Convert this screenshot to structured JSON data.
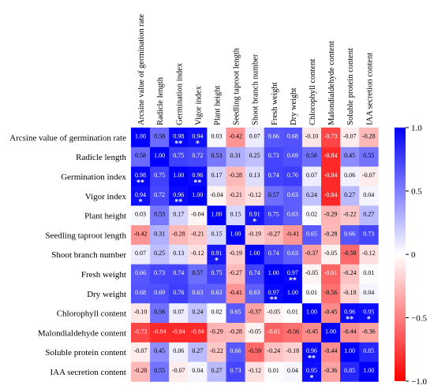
{
  "chart_data": {
    "type": "heatmap",
    "title": "",
    "variables": [
      "Arcsine value of germination rate",
      "Radicle length",
      "Germination index",
      "Vigor index",
      "Plant height",
      "Seedling taproot length",
      "Shoot branch number",
      "Fresh weight",
      "Dry weight",
      "Chlorophyll content",
      "Malondialdehyde content",
      "Soluble protein content",
      "IAA secretion content"
    ],
    "value_labels": [
      [
        "1.00",
        "0.58",
        "0.98",
        "0.94",
        "0.03",
        "-0.42",
        "0.07",
        "0.66",
        "0.68",
        "-0.10",
        "-0.73",
        "-0.07",
        "-0.28"
      ],
      [
        "0.58",
        "1.00",
        "0.75",
        "0.72",
        "0.53",
        "0.31",
        "0.25",
        "0.73",
        "0.69",
        "0.56",
        "-0.84",
        "0.45",
        "0.55"
      ],
      [
        "0.98",
        "0.75",
        "1.00",
        "0.96",
        "0.17",
        "-0.28",
        "0.13",
        "0.74",
        "0.76",
        "0.07",
        "-0.84",
        "0.06",
        "-0.07"
      ],
      [
        "0.94",
        "0.72",
        "0.96",
        "1.00",
        "-0.04",
        "-0.21",
        "-0.12",
        "0.57",
        "0.63",
        "0.24",
        "-0.84",
        "0.27",
        "0.04"
      ],
      [
        "0.03",
        "0.53",
        "0.17",
        "-0.04",
        "1.00",
        "0.15",
        "0.91",
        "0.75",
        "0.63",
        "0.02",
        "-0.29",
        "-0.22",
        "0.27"
      ],
      [
        "-0.42",
        "0.31",
        "-0.28",
        "-0.21",
        "0.15",
        "1.00",
        "-0.19",
        "-0.27",
        "-0.41",
        "0.65",
        "-0.28",
        "0.66",
        "0.73"
      ],
      [
        "0.07",
        "0.25",
        "0.13",
        "-0.12",
        "0.91",
        "-0.19",
        "1.00",
        "0.74",
        "0.63",
        "-0.37",
        "-0.05",
        "-0.59",
        "-0.12"
      ],
      [
        "0.66",
        "0.73",
        "0.74",
        "0.57",
        "0.75",
        "-0.27",
        "0.74",
        "1.00",
        "0.97",
        "-0.05",
        "-0.61",
        "-0.24",
        "0.01"
      ],
      [
        "0.68",
        "0.69",
        "0.76",
        "0.63",
        "0.63",
        "-0.41",
        "0.63",
        "0.97",
        "1.00",
        "0.01",
        "-0.56",
        "-0.18",
        "0.04"
      ],
      [
        "-0.10",
        "0.56",
        "0.07",
        "0.24",
        "0.02",
        "0.65",
        "-0.37",
        "-0.05",
        "0.01",
        "1.00",
        "-0.45",
        "0.96",
        "0.95"
      ],
      [
        "-0.73",
        "-0.84",
        "-0.84",
        "-0.84",
        "-0.29",
        "-0.28",
        "-0.05",
        "-0.61",
        "-0.56",
        "-0.45",
        "1.00",
        "-0.44",
        "-0.36"
      ],
      [
        "-0.07",
        "0.45",
        "0.06",
        "0.27",
        "-0.22",
        "0.66",
        "-0.59",
        "-0.24",
        "-0.18",
        "0.96",
        "-0.44",
        "1.00",
        "0.85"
      ],
      [
        "-0.28",
        "0.55",
        "-0.07",
        "0.04",
        "0.27",
        "0.73",
        "-0.12",
        "0.01",
        "0.04",
        "0.95",
        "-0.36",
        "0.85",
        "1.00"
      ]
    ],
    "significance": [
      [
        "",
        "",
        "**",
        "*",
        "",
        "",
        "",
        "",
        "",
        "",
        "",
        "",
        ""
      ],
      [
        "",
        "",
        "",
        "",
        "",
        "",
        "",
        "",
        "",
        "",
        "",
        "",
        ""
      ],
      [
        "**",
        "",
        "",
        "**",
        "",
        "",
        "",
        "",
        "",
        "",
        "",
        "",
        ""
      ],
      [
        "*",
        "",
        "**",
        "",
        "",
        "",
        "",
        "",
        "",
        "",
        "",
        "",
        ""
      ],
      [
        "",
        "",
        "",
        "",
        "",
        "",
        "*",
        "",
        "",
        "",
        "",
        "",
        ""
      ],
      [
        "",
        "",
        "",
        "",
        "",
        "",
        "",
        "",
        "",
        "",
        "",
        "",
        ""
      ],
      [
        "",
        "",
        "",
        "",
        "*",
        "",
        "",
        "",
        "",
        "",
        "",
        "",
        ""
      ],
      [
        "",
        "",
        "",
        "",
        "",
        "",
        "",
        "",
        "**",
        "",
        "",
        "",
        ""
      ],
      [
        "",
        "",
        "",
        "",
        "",
        "",
        "",
        "**",
        "",
        "",
        "",
        "",
        ""
      ],
      [
        "",
        "",
        "",
        "",
        "",
        "",
        "",
        "",
        "",
        "",
        "",
        "**",
        "*"
      ],
      [
        "",
        "",
        "",
        "",
        "",
        "",
        "",
        "",
        "",
        "",
        "",
        "",
        ""
      ],
      [
        "",
        "",
        "",
        "",
        "",
        "",
        "",
        "",
        "",
        "**",
        "",
        "",
        ""
      ],
      [
        "",
        "",
        "",
        "",
        "",
        "",
        "",
        "",
        "",
        "*",
        "",
        "",
        ""
      ]
    ],
    "colorbar": {
      "min": -1.0,
      "max": 1.0,
      "ticks": [
        "1.0",
        "0.5",
        "0",
        "−0.5",
        "−1.0"
      ],
      "tick_values": [
        1.0,
        0.5,
        0,
        -0.5,
        -1.0
      ],
      "colors": {
        "negative": "#ff0000",
        "neutral": "#ffffff",
        "positive": "#0000ff"
      }
    },
    "grid": false,
    "legend_position": "right"
  }
}
